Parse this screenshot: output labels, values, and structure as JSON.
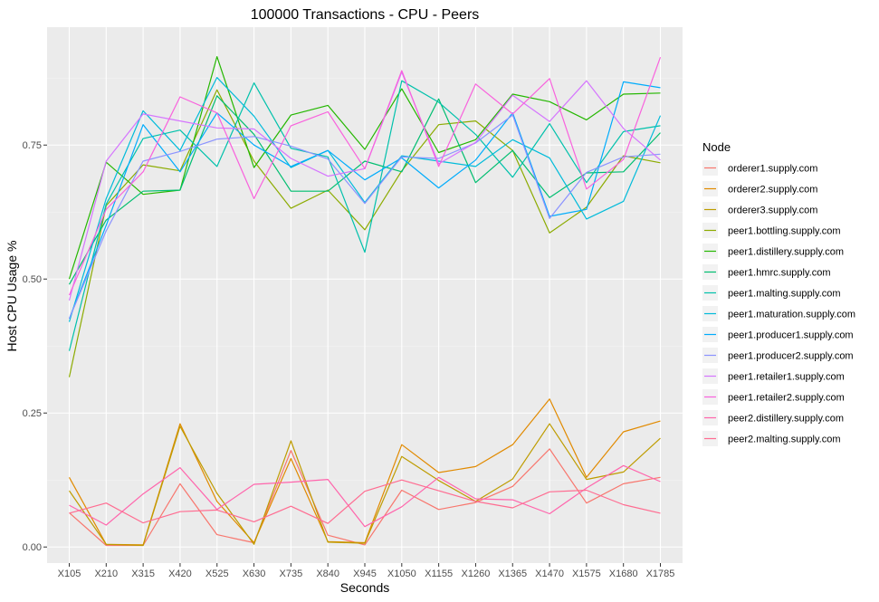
{
  "chart_data": {
    "type": "line",
    "title": "100000 Transactions - CPU - Peers",
    "xlabel": "Seconds",
    "ylabel": "Host CPU Usage %",
    "categories": [
      "X105",
      "X210",
      "X315",
      "X420",
      "X525",
      "X630",
      "X735",
      "X840",
      "X945",
      "X1050",
      "X1155",
      "X1260",
      "X1365",
      "X1470",
      "X1575",
      "X1680",
      "X1785"
    ],
    "ylim": [
      -0.03,
      0.97
    ],
    "yticks": [
      0.0,
      0.25,
      0.5,
      0.75
    ],
    "ytick_labels": [
      "0.00",
      "0.25",
      "0.50",
      "0.75"
    ],
    "grid": true,
    "panel_background": "#ebebeb",
    "legend": {
      "title": "Node",
      "position": "right"
    },
    "series": [
      {
        "name": "orderer1.supply.com",
        "color": "#F8766D",
        "values": [
          0.064,
          0.003,
          0.003,
          0.118,
          0.023,
          0.008,
          0.18,
          0.022,
          0.004,
          0.106,
          0.07,
          0.083,
          0.113,
          0.183,
          0.082,
          0.118,
          0.13
        ]
      },
      {
        "name": "orderer2.supply.com",
        "color": "#E18A00",
        "values": [
          0.13,
          0.005,
          0.004,
          0.23,
          0.085,
          0.008,
          0.165,
          0.01,
          0.008,
          0.191,
          0.139,
          0.15,
          0.191,
          0.276,
          0.13,
          0.215,
          0.235
        ]
      },
      {
        "name": "orderer3.supply.com",
        "color": "#BE9C00",
        "values": [
          0.105,
          0.005,
          0.003,
          0.225,
          0.1,
          0.005,
          0.198,
          0.009,
          0.007,
          0.169,
          0.124,
          0.085,
          0.127,
          0.23,
          0.126,
          0.14,
          0.203
        ]
      },
      {
        "name": "peer1.bottling.supply.com",
        "color": "#8CAB00",
        "values": [
          0.317,
          0.637,
          0.713,
          0.702,
          0.853,
          0.72,
          0.632,
          0.666,
          0.592,
          0.702,
          0.788,
          0.795,
          0.74,
          0.586,
          0.634,
          0.73,
          0.717
        ]
      },
      {
        "name": "peer1.distillery.supply.com",
        "color": "#24B700",
        "values": [
          0.5,
          0.718,
          0.658,
          0.666,
          0.915,
          0.708,
          0.806,
          0.824,
          0.742,
          0.855,
          0.736,
          0.76,
          0.845,
          0.831,
          0.797,
          0.845,
          0.847
        ]
      },
      {
        "name": "peer1.hmrc.supply.com",
        "color": "#00BE70",
        "values": [
          0.49,
          0.61,
          0.664,
          0.666,
          0.842,
          0.77,
          0.664,
          0.664,
          0.72,
          0.7,
          0.836,
          0.68,
          0.74,
          0.652,
          0.698,
          0.7,
          0.773
        ]
      },
      {
        "name": "peer1.malting.supply.com",
        "color": "#00C1AB",
        "values": [
          0.366,
          0.64,
          0.762,
          0.778,
          0.71,
          0.866,
          0.744,
          0.728,
          0.55,
          0.87,
          0.83,
          0.77,
          0.69,
          0.79,
          0.68,
          0.775,
          0.786
        ]
      },
      {
        "name": "peer1.maturation.supply.com",
        "color": "#00BBDA",
        "values": [
          0.42,
          0.65,
          0.814,
          0.74,
          0.876,
          0.804,
          0.708,
          0.74,
          0.643,
          0.73,
          0.72,
          0.71,
          0.76,
          0.726,
          0.612,
          0.645,
          0.805
        ]
      },
      {
        "name": "peer1.producer1.supply.com",
        "color": "#00ACFC",
        "values": [
          0.426,
          0.6,
          0.788,
          0.7,
          0.81,
          0.75,
          0.71,
          0.74,
          0.685,
          0.726,
          0.67,
          0.722,
          0.81,
          0.617,
          0.63,
          0.868,
          0.857
        ]
      },
      {
        "name": "peer1.producer2.supply.com",
        "color": "#8B93FF",
        "values": [
          0.426,
          0.59,
          0.72,
          0.738,
          0.761,
          0.766,
          0.748,
          0.724,
          0.641,
          0.728,
          0.725,
          0.754,
          0.806,
          0.613,
          0.699,
          0.728,
          0.733
        ]
      },
      {
        "name": "peer1.retailer1.supply.com",
        "color": "#D575FE",
        "values": [
          0.46,
          0.72,
          0.808,
          0.795,
          0.782,
          0.78,
          0.725,
          0.692,
          0.706,
          0.886,
          0.715,
          0.755,
          0.843,
          0.794,
          0.87,
          0.781,
          0.722
        ]
      },
      {
        "name": "peer1.retailer2.supply.com",
        "color": "#F962DD",
        "values": [
          0.47,
          0.63,
          0.7,
          0.84,
          0.81,
          0.65,
          0.786,
          0.812,
          0.706,
          0.889,
          0.71,
          0.864,
          0.808,
          0.874,
          0.668,
          0.723,
          0.914
        ]
      },
      {
        "name": "peer2.distillery.supply.com",
        "color": "#FF65AC",
        "values": [
          0.078,
          0.041,
          0.099,
          0.148,
          0.07,
          0.117,
          0.121,
          0.126,
          0.038,
          0.075,
          0.13,
          0.09,
          0.088,
          0.062,
          0.11,
          0.152,
          0.122
        ]
      },
      {
        "name": "peer2.malting.supply.com",
        "color": "#FF6C91",
        "values": [
          0.063,
          0.082,
          0.045,
          0.066,
          0.069,
          0.047,
          0.076,
          0.044,
          0.104,
          0.125,
          0.105,
          0.085,
          0.073,
          0.103,
          0.106,
          0.079,
          0.063
        ]
      }
    ]
  }
}
